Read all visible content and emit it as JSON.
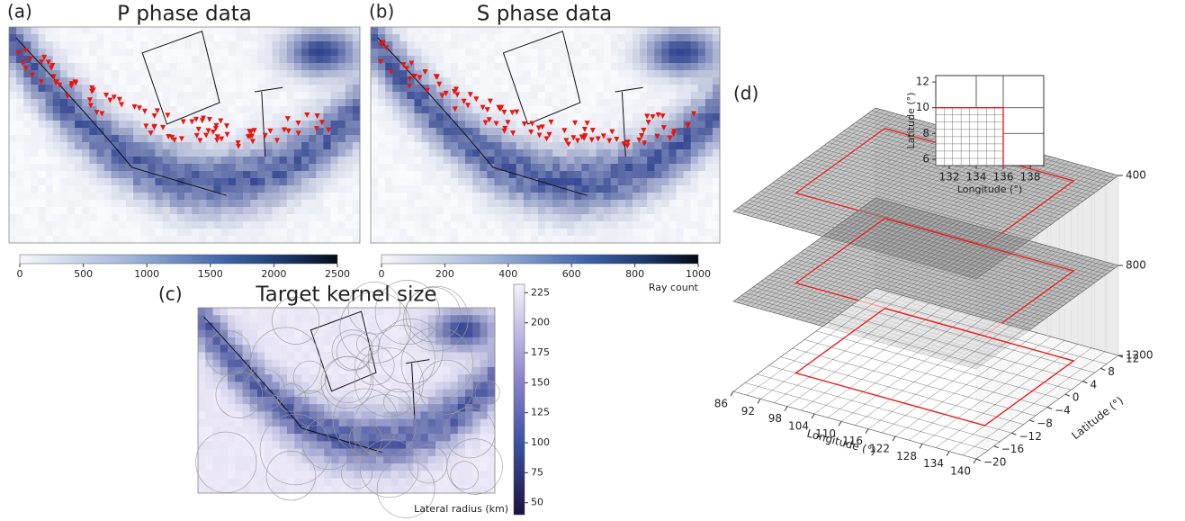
{
  "panels": {
    "a": {
      "label": "(a)",
      "title": "P phase data",
      "colorbar": {
        "lim": [
          0,
          2500
        ],
        "ticks": [
          0,
          500,
          1000,
          1500,
          2000,
          2500
        ]
      }
    },
    "b": {
      "label": "(b)",
      "title": "S phase data",
      "colorbar": {
        "lim": [
          0,
          1000
        ],
        "ticks": [
          0,
          200,
          400,
          600,
          800,
          1000
        ],
        "label": "Ray count"
      }
    },
    "c": {
      "label": "(c)",
      "title": "Target kernel size",
      "colorbar": {
        "lim": [
          40,
          232
        ],
        "ticks": [
          50,
          75,
          100,
          125,
          150,
          175,
          200,
          225
        ],
        "label": "Lateral radius (km)"
      }
    },
    "d": {
      "label": "(d)",
      "xlabel": "Longitude (°)",
      "ylabel": "Latitude (°)",
      "xlim": [
        86,
        140
      ],
      "ylim": [
        -20,
        12
      ],
      "zlim": [
        400,
        1200
      ],
      "xticks": [
        86,
        92,
        98,
        104,
        110,
        116,
        122,
        128,
        134,
        140
      ],
      "yticks": [
        12,
        8,
        4,
        0,
        {
          "value": -4,
          "label": "−4"
        },
        {
          "value": -8,
          "label": "−8"
        },
        {
          "value": -12,
          "label": "−12"
        },
        {
          "value": -16,
          "label": "−16"
        },
        {
          "value": -20,
          "label": "−20"
        }
      ],
      "zticks": [
        400,
        800,
        1200
      ],
      "inset": {
        "xlabel": "Longitude (°)",
        "ylabel": "Latitude (°)",
        "xlim": [
          131,
          139
        ],
        "ylim": [
          5.5,
          12.5
        ],
        "xticks": [
          132,
          134,
          136,
          138
        ],
        "yticks": [
          6,
          8,
          10,
          12
        ]
      }
    }
  }
}
